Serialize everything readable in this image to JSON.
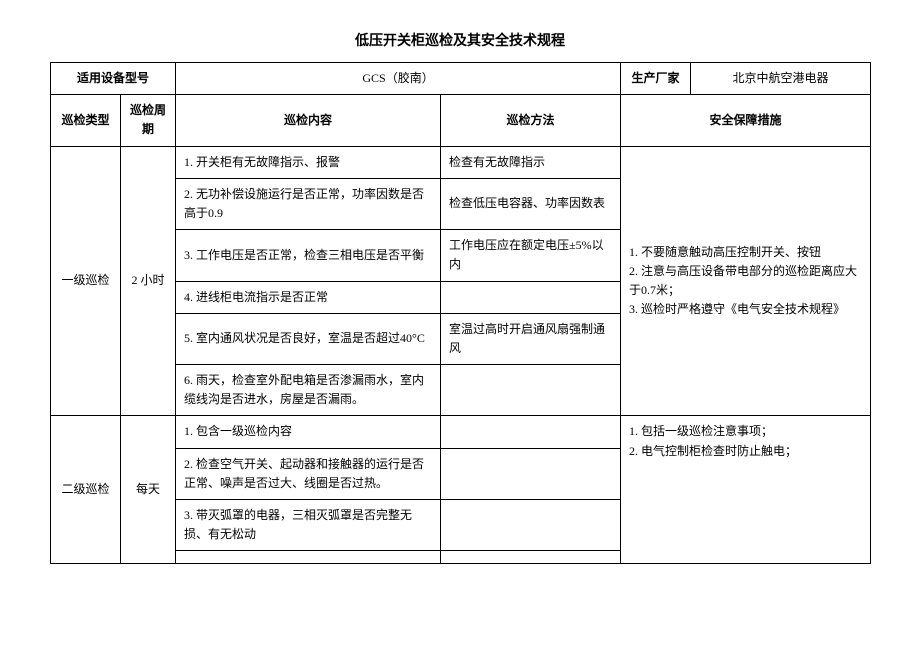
{
  "document": {
    "title": "低压开关柜巡检及其安全技术规程"
  },
  "header_row1": {
    "device_model_label": "适用设备型号",
    "device_model_value": "GCS（胶南）",
    "manufacturer_label": "生产厂家",
    "manufacturer_value": "北京中航空港电器"
  },
  "header_row2": {
    "inspection_type": "巡检类型",
    "inspection_cycle": "巡检周期",
    "inspection_content": "巡检内容",
    "inspection_method": "巡检方法",
    "safety_measures": "安全保障措施"
  },
  "level1": {
    "type": "一级巡检",
    "cycle": "2 小时",
    "items": [
      {
        "content": "1. 开关柜有无故障指示、报警",
        "method": "检查有无故障指示"
      },
      {
        "content": "2. 无功补偿设施运行是否正常，功率因数是否高于0.9",
        "method": "检查低压电容器、功率因数表"
      },
      {
        "content": "3. 工作电压是否正常，检查三相电压是否平衡",
        "method": "工作电压应在额定电压±5%以内"
      },
      {
        "content": "4. 进线柜电流指示是否正常",
        "method": ""
      },
      {
        "content": "5. 室内通风状况是否良好，室温是否超过40°C",
        "method": "室温过高时开启通风扇强制通风"
      },
      {
        "content": "6. 雨天，检查室外配电箱是否渗漏雨水，室内缆线沟是否进水，房屋是否漏雨。",
        "method": ""
      }
    ],
    "safety": "1. 不要随意触动高压控制开关、按钮\n2. 注意与高压设备带电部分的巡检距离应大于0.7米；\n3. 巡检时严格遵守《电气安全技术规程》"
  },
  "level2": {
    "type": "二级巡检",
    "cycle": "每天",
    "items": [
      {
        "content": "1. 包含一级巡检内容",
        "method": ""
      },
      {
        "content": "2. 检查空气开关、起动器和接触器的运行是否正常、噪声是否过大、线圈是否过热。",
        "method": ""
      },
      {
        "content": "3. 带灭弧罩的电器，三相灭弧罩是否完整无损、有无松动",
        "method": ""
      }
    ],
    "safety": "1. 包括一级巡检注意事项；\n2. 电气控制柜检查时防止触电；",
    "extra_row": {
      "content": "",
      "method": ""
    }
  }
}
